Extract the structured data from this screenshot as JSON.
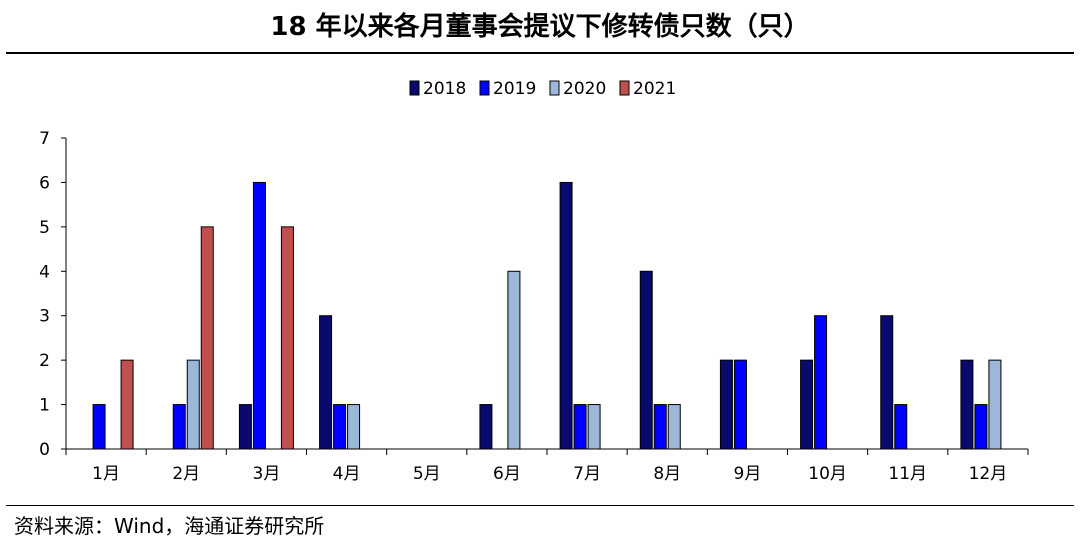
{
  "header": {
    "title": "18 年以来各月董事会提议下修转债只数（只）"
  },
  "footer": {
    "source": "资料来源：Wind，海通证券研究所"
  },
  "chart_data": {
    "type": "bar",
    "title": "18 年以来各月董事会提议下修转债只数（只）",
    "xlabel": "",
    "ylabel": "",
    "ylim": [
      0,
      7
    ],
    "yticks": [
      0,
      1,
      2,
      3,
      4,
      5,
      6,
      7
    ],
    "legend_position": "top-center",
    "grid": false,
    "categories": [
      "1月",
      "2月",
      "3月",
      "4月",
      "5月",
      "6月",
      "7月",
      "8月",
      "9月",
      "10月",
      "11月",
      "12月"
    ],
    "series": [
      {
        "name": "2018",
        "color": "#0a0a6e",
        "values": [
          0,
          0,
          1,
          3,
          0,
          1,
          6,
          4,
          2,
          2,
          3,
          2
        ]
      },
      {
        "name": "2019",
        "color": "#0000ff",
        "values": [
          1,
          1,
          6,
          1,
          0,
          0,
          1,
          1,
          2,
          3,
          1,
          1
        ]
      },
      {
        "name": "2020",
        "color": "#9bb7d9",
        "values": [
          0,
          2,
          0,
          1,
          0,
          4,
          1,
          1,
          0,
          0,
          0,
          2
        ]
      },
      {
        "name": "2021",
        "color": "#c0504d",
        "values": [
          2,
          5,
          5,
          0,
          0,
          0,
          0,
          0,
          0,
          0,
          0,
          0
        ]
      }
    ]
  }
}
